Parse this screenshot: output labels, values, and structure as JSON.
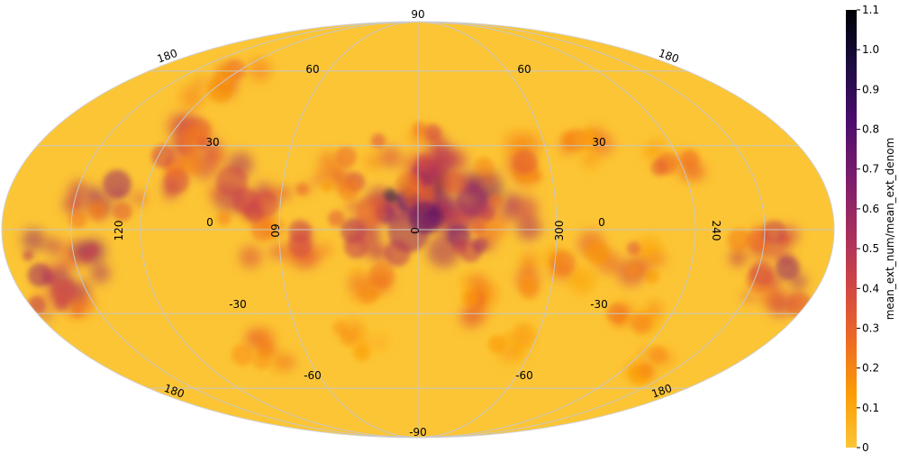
{
  "chart_data": {
    "type": "heatmap",
    "projection": "mollweide",
    "title": "",
    "colormap": "inferno_r",
    "colorbar": {
      "label": "mean_ext_num/mean_ext_denom",
      "range": [
        0,
        1.1
      ],
      "ticks": [
        "0",
        "0.1",
        "0.2",
        "0.3",
        "0.4",
        "0.5",
        "0.6",
        "0.7",
        "0.8",
        "0.9",
        "1.0",
        "1.1"
      ],
      "stops": [
        "#fcc535",
        "#fb9b06",
        "#ed6925",
        "#cf4446",
        "#a52c60",
        "#781c6d",
        "#4a0c6b",
        "#1b0c41",
        "#000004"
      ]
    },
    "graticule": {
      "latitudes_deg": [
        -60,
        -30,
        0,
        30,
        60
      ],
      "longitudes_deg": [
        -150,
        -120,
        -60,
        0,
        60,
        120,
        150
      ]
    },
    "grid_labels": {
      "pole_north": "90",
      "pole_south": "-90",
      "lat_30": "30",
      "lat_60": "60",
      "lat_neg30": "-30",
      "lat_neg60": "-60",
      "lon_0": "0",
      "lon_60": "60",
      "lon_120": "120",
      "lon_180": "180",
      "lon_240": "240",
      "lon_300": "300"
    },
    "background_value": 0.02,
    "grid": true
  }
}
